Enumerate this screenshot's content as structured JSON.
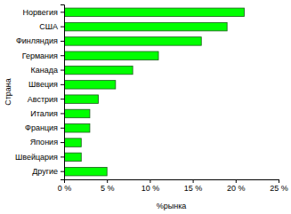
{
  "chart_data": {
    "type": "bar",
    "orientation": "horizontal",
    "categories": [
      "Норвегия",
      "США",
      "Финляндия",
      "Германия",
      "Канада",
      "Швеция",
      "Австрия",
      "Италия",
      "Франция",
      "Япония",
      "Швейцария",
      "Другие"
    ],
    "values": [
      21,
      19,
      16,
      11,
      8,
      6,
      4,
      3,
      3,
      2,
      2,
      5
    ],
    "color": "#00ff00",
    "x_label": "%рынка",
    "y_label": "Страна",
    "xlim": [
      0,
      25
    ],
    "xticks": [
      {
        "value": 0,
        "label": "0 %"
      },
      {
        "value": 5,
        "label": "5 %"
      },
      {
        "value": 10,
        "label": "10 %"
      },
      {
        "value": 15,
        "label": "15 %"
      },
      {
        "value": 20,
        "label": "20 %"
      },
      {
        "value": 25,
        "label": "25 %"
      }
    ],
    "grid": false
  }
}
